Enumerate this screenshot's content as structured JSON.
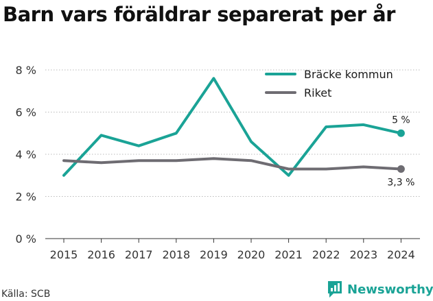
{
  "chart_data": {
    "type": "line",
    "title": "Barn vars föräldrar separerat per år",
    "x": [
      "2015",
      "2016",
      "2017",
      "2018",
      "2019",
      "2020",
      "2021",
      "2022",
      "2023",
      "2024"
    ],
    "y_ticks": [
      "0 %",
      "2 %",
      "4 %",
      "6 %",
      "8 %"
    ],
    "ylim": [
      0,
      8
    ],
    "grid": "horizontal dotted",
    "legend_position": "top-right",
    "series": [
      {
        "name": "Bräcke kommun",
        "color": "#1aa396",
        "values": [
          3.0,
          4.9,
          4.4,
          5.0,
          7.6,
          4.6,
          3.0,
          5.3,
          5.4,
          5.0
        ],
        "end_label": "5 %"
      },
      {
        "name": "Riket",
        "color": "#6e6c72",
        "values": [
          3.7,
          3.6,
          3.7,
          3.7,
          3.8,
          3.7,
          3.3,
          3.3,
          3.4,
          3.3
        ],
        "end_label": "3,3 %"
      }
    ]
  },
  "footer": {
    "source": "Källa: SCB",
    "brand": "Newsworthy",
    "brand_icon": "newsworthy-logo-icon"
  }
}
